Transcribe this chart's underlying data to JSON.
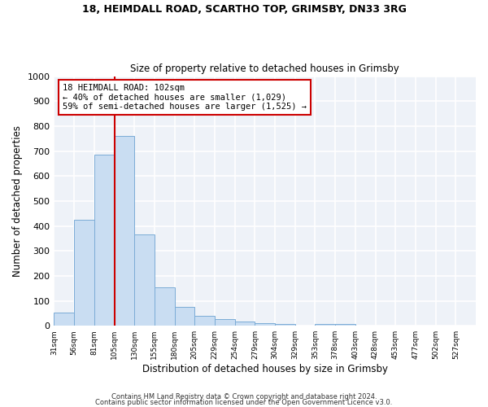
{
  "title1": "18, HEIMDALL ROAD, SCARTHO TOP, GRIMSBY, DN33 3RG",
  "title2": "Size of property relative to detached houses in Grimsby",
  "xlabel": "Distribution of detached houses by size in Grimsby",
  "ylabel": "Number of detached properties",
  "bar_labels": [
    "31sqm",
    "56sqm",
    "81sqm",
    "105sqm",
    "130sqm",
    "155sqm",
    "180sqm",
    "205sqm",
    "229sqm",
    "254sqm",
    "279sqm",
    "304sqm",
    "329sqm",
    "353sqm",
    "378sqm",
    "403sqm",
    "428sqm",
    "453sqm",
    "477sqm",
    "502sqm",
    "527sqm"
  ],
  "bar_values": [
    52,
    425,
    685,
    760,
    365,
    155,
    75,
    40,
    27,
    17,
    10,
    6,
    0,
    8,
    8,
    0,
    0,
    0,
    0,
    0,
    0
  ],
  "bar_color": "#c9ddf2",
  "bar_edge_color": "#7bacd6",
  "property_line_x": 3,
  "bar_labels_sqm": [
    "31sqm",
    "56sqm",
    "81sqm",
    "105sqm",
    "130sqm",
    "155sqm",
    "180sqm",
    "205sqm",
    "229sqm",
    "254sqm",
    "279sqm",
    "304sqm",
    "329sqm",
    "353sqm",
    "378sqm",
    "403sqm",
    "428sqm",
    "453sqm",
    "477sqm",
    "502sqm",
    "527sqm"
  ],
  "annotation_title": "18 HEIMDALL ROAD: 102sqm",
  "annotation_line1": "← 40% of detached houses are smaller (1,029)",
  "annotation_line2": "59% of semi-detached houses are larger (1,525) →",
  "annotation_box_color": "#ffffff",
  "annotation_box_edge": "#cc0000",
  "vline_color": "#cc0000",
  "ylim": [
    0,
    1000
  ],
  "yticks": [
    0,
    100,
    200,
    300,
    400,
    500,
    600,
    700,
    800,
    900,
    1000
  ],
  "footer1": "Contains HM Land Registry data © Crown copyright and database right 2024.",
  "footer2": "Contains public sector information licensed under the Open Government Licence v3.0.",
  "bg_color": "#ffffff",
  "plot_bg_color": "#eef2f8",
  "grid_color": "#ffffff"
}
